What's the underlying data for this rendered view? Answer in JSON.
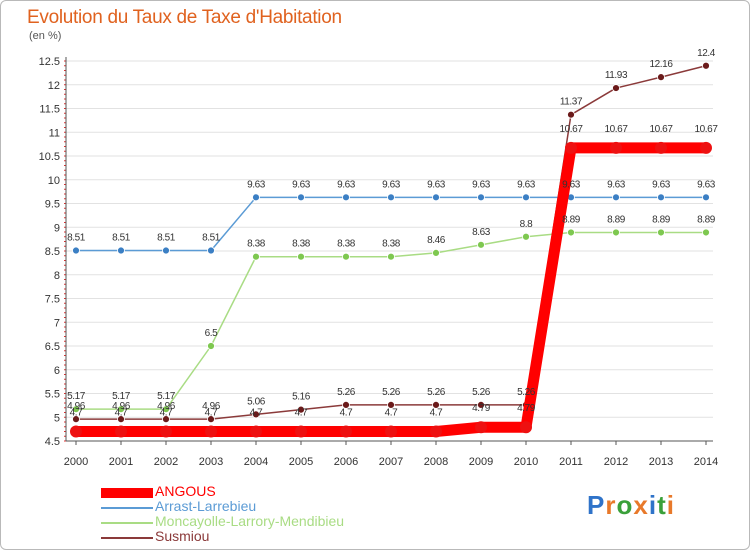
{
  "title": "Evolution du Taux de Taxe d'Habitation",
  "unit": "(en %)",
  "logo": {
    "text": "Proxiti",
    "colors": [
      "#2f73c9",
      "#e8792a",
      "#3aa03a",
      "#e8792a",
      "#2f73c9",
      "#3aa03a",
      "#e8792a"
    ]
  },
  "chart_data": {
    "type": "line",
    "title": "Evolution du Taux de Taxe d'Habitation",
    "ylabel": "(en %)",
    "xlabel": "",
    "x": [
      "2000",
      "2001",
      "2002",
      "2003",
      "2004",
      "2005",
      "2006",
      "2007",
      "2008",
      "2009",
      "2010",
      "2011",
      "2012",
      "2013",
      "2014"
    ],
    "ylim": [
      4.5,
      12.5
    ],
    "yticks": [
      "4.5",
      "5",
      "5.5",
      "6",
      "6.5",
      "7",
      "7.5",
      "8",
      "8.5",
      "9",
      "9.5",
      "10",
      "10.5",
      "11",
      "11.5",
      "12",
      "12.5"
    ],
    "grid": "horizontal",
    "legend": "bottom-left",
    "series": [
      {
        "name": "ANGOUS",
        "color": "#ff0000",
        "marker": "#ee1111",
        "values": [
          4.7,
          4.7,
          4.7,
          4.7,
          4.7,
          4.7,
          4.7,
          4.7,
          4.7,
          4.79,
          4.79,
          10.67,
          10.67,
          10.67,
          10.67
        ],
        "labels": [
          "4.7",
          "4.7",
          "4.7",
          "4.7",
          "4.7",
          "4.7",
          "4.7",
          "4.7",
          "4.7",
          "4.79",
          "4.79",
          "10.67",
          "10.67",
          "10.67",
          "10.67"
        ]
      },
      {
        "name": "Arrast-Larrebieu",
        "color": "#5b9bd5",
        "marker": "#3b7fc4",
        "values": [
          8.51,
          8.51,
          8.51,
          8.51,
          9.63,
          9.63,
          9.63,
          9.63,
          9.63,
          9.63,
          9.63,
          9.63,
          9.63,
          9.63,
          9.63
        ],
        "labels": [
          "8.51",
          "8.51",
          "8.51",
          "8.51",
          "9.63",
          "9.63",
          "9.63",
          "9.63",
          "9.63",
          "9.63",
          "9.63",
          "9.63",
          "9.63",
          "9.63",
          "9.63"
        ]
      },
      {
        "name": "Moncayolle-Larrory-Mendibieu",
        "color": "#a9dc84",
        "marker": "#7ec850",
        "values": [
          5.17,
          5.17,
          5.17,
          6.5,
          8.38,
          8.38,
          8.38,
          8.38,
          8.46,
          8.63,
          8.8,
          8.89,
          8.89,
          8.89,
          8.89
        ],
        "labels": [
          "5.17",
          "5.17",
          "5.17",
          "6.5",
          "8.38",
          "8.38",
          "8.38",
          "8.38",
          "8.46",
          "8.63",
          "8.8",
          "8.89",
          "8.89",
          "8.89",
          "8.89"
        ]
      },
      {
        "name": "Susmiou",
        "color": "#8b3a3a",
        "marker": "#6b1a1a",
        "values": [
          4.96,
          4.96,
          4.96,
          4.96,
          5.06,
          5.16,
          5.26,
          5.26,
          5.26,
          5.26,
          5.26,
          11.37,
          11.93,
          12.16,
          12.4
        ],
        "labels": [
          "4.96",
          "4.96",
          "4.96",
          "4.96",
          "5.06",
          "5.16",
          "5.26",
          "5.26",
          "5.26",
          "5.26",
          "5.26",
          "11.37",
          "11.93",
          "12.16",
          "12.4"
        ]
      }
    ]
  }
}
